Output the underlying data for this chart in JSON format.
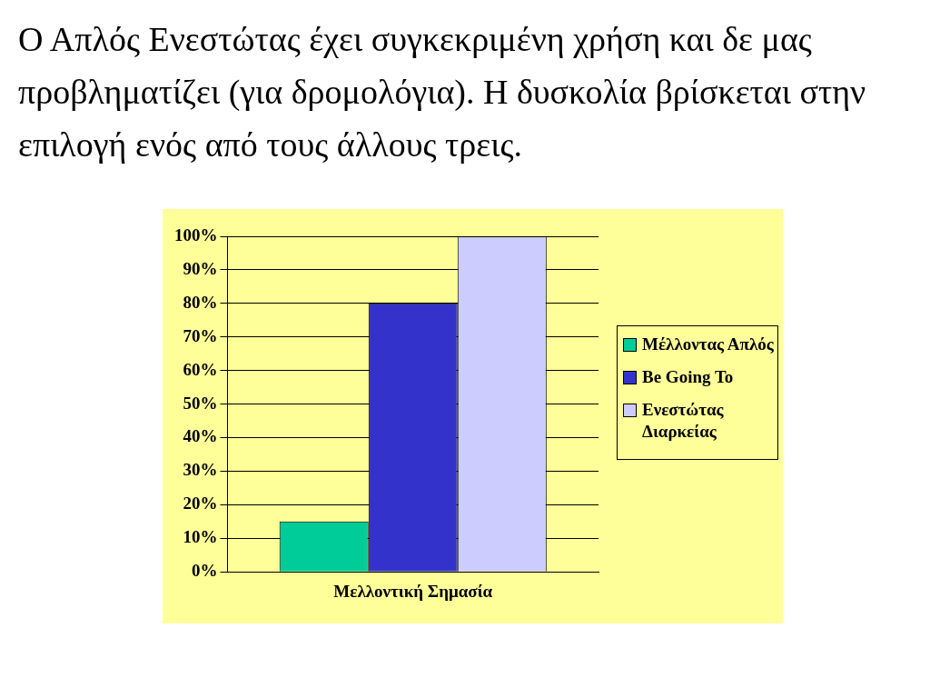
{
  "chart_data": {
    "type": "bar",
    "title": "Ο Απλός Ενεστώτας έχει συγκεκριμένη χρήση και δε μας προβληματίζει (για δρομολόγια). Η δυσκολία βρίσκεται στην επιλογή ενός από τους άλλους τρεις.",
    "categories": [
      "Μελλοντική Σημασία"
    ],
    "series": [
      {
        "name": "Μέλλοντας Απλός",
        "color": "#00cc99",
        "values": [
          15
        ]
      },
      {
        "name": "Be Going To",
        "color": "#3333cc",
        "values": [
          80
        ]
      },
      {
        "name": "Ενεστώτας Διαρκείας",
        "color": "#ccccff",
        "values": [
          100
        ]
      }
    ],
    "ylim": [
      0,
      100
    ],
    "yticks": [
      {
        "value": 0,
        "label": "0%"
      },
      {
        "value": 10,
        "label": "10%"
      },
      {
        "value": 20,
        "label": "20%"
      },
      {
        "value": 30,
        "label": "30%"
      },
      {
        "value": 40,
        "label": "40%"
      },
      {
        "value": 50,
        "label": "50%"
      },
      {
        "value": 60,
        "label": "60%"
      },
      {
        "value": 70,
        "label": "70%"
      },
      {
        "value": 80,
        "label": "80%"
      },
      {
        "value": 90,
        "label": "90%"
      },
      {
        "value": 100,
        "label": "100%"
      }
    ],
    "grid": "y",
    "legend": "right"
  }
}
